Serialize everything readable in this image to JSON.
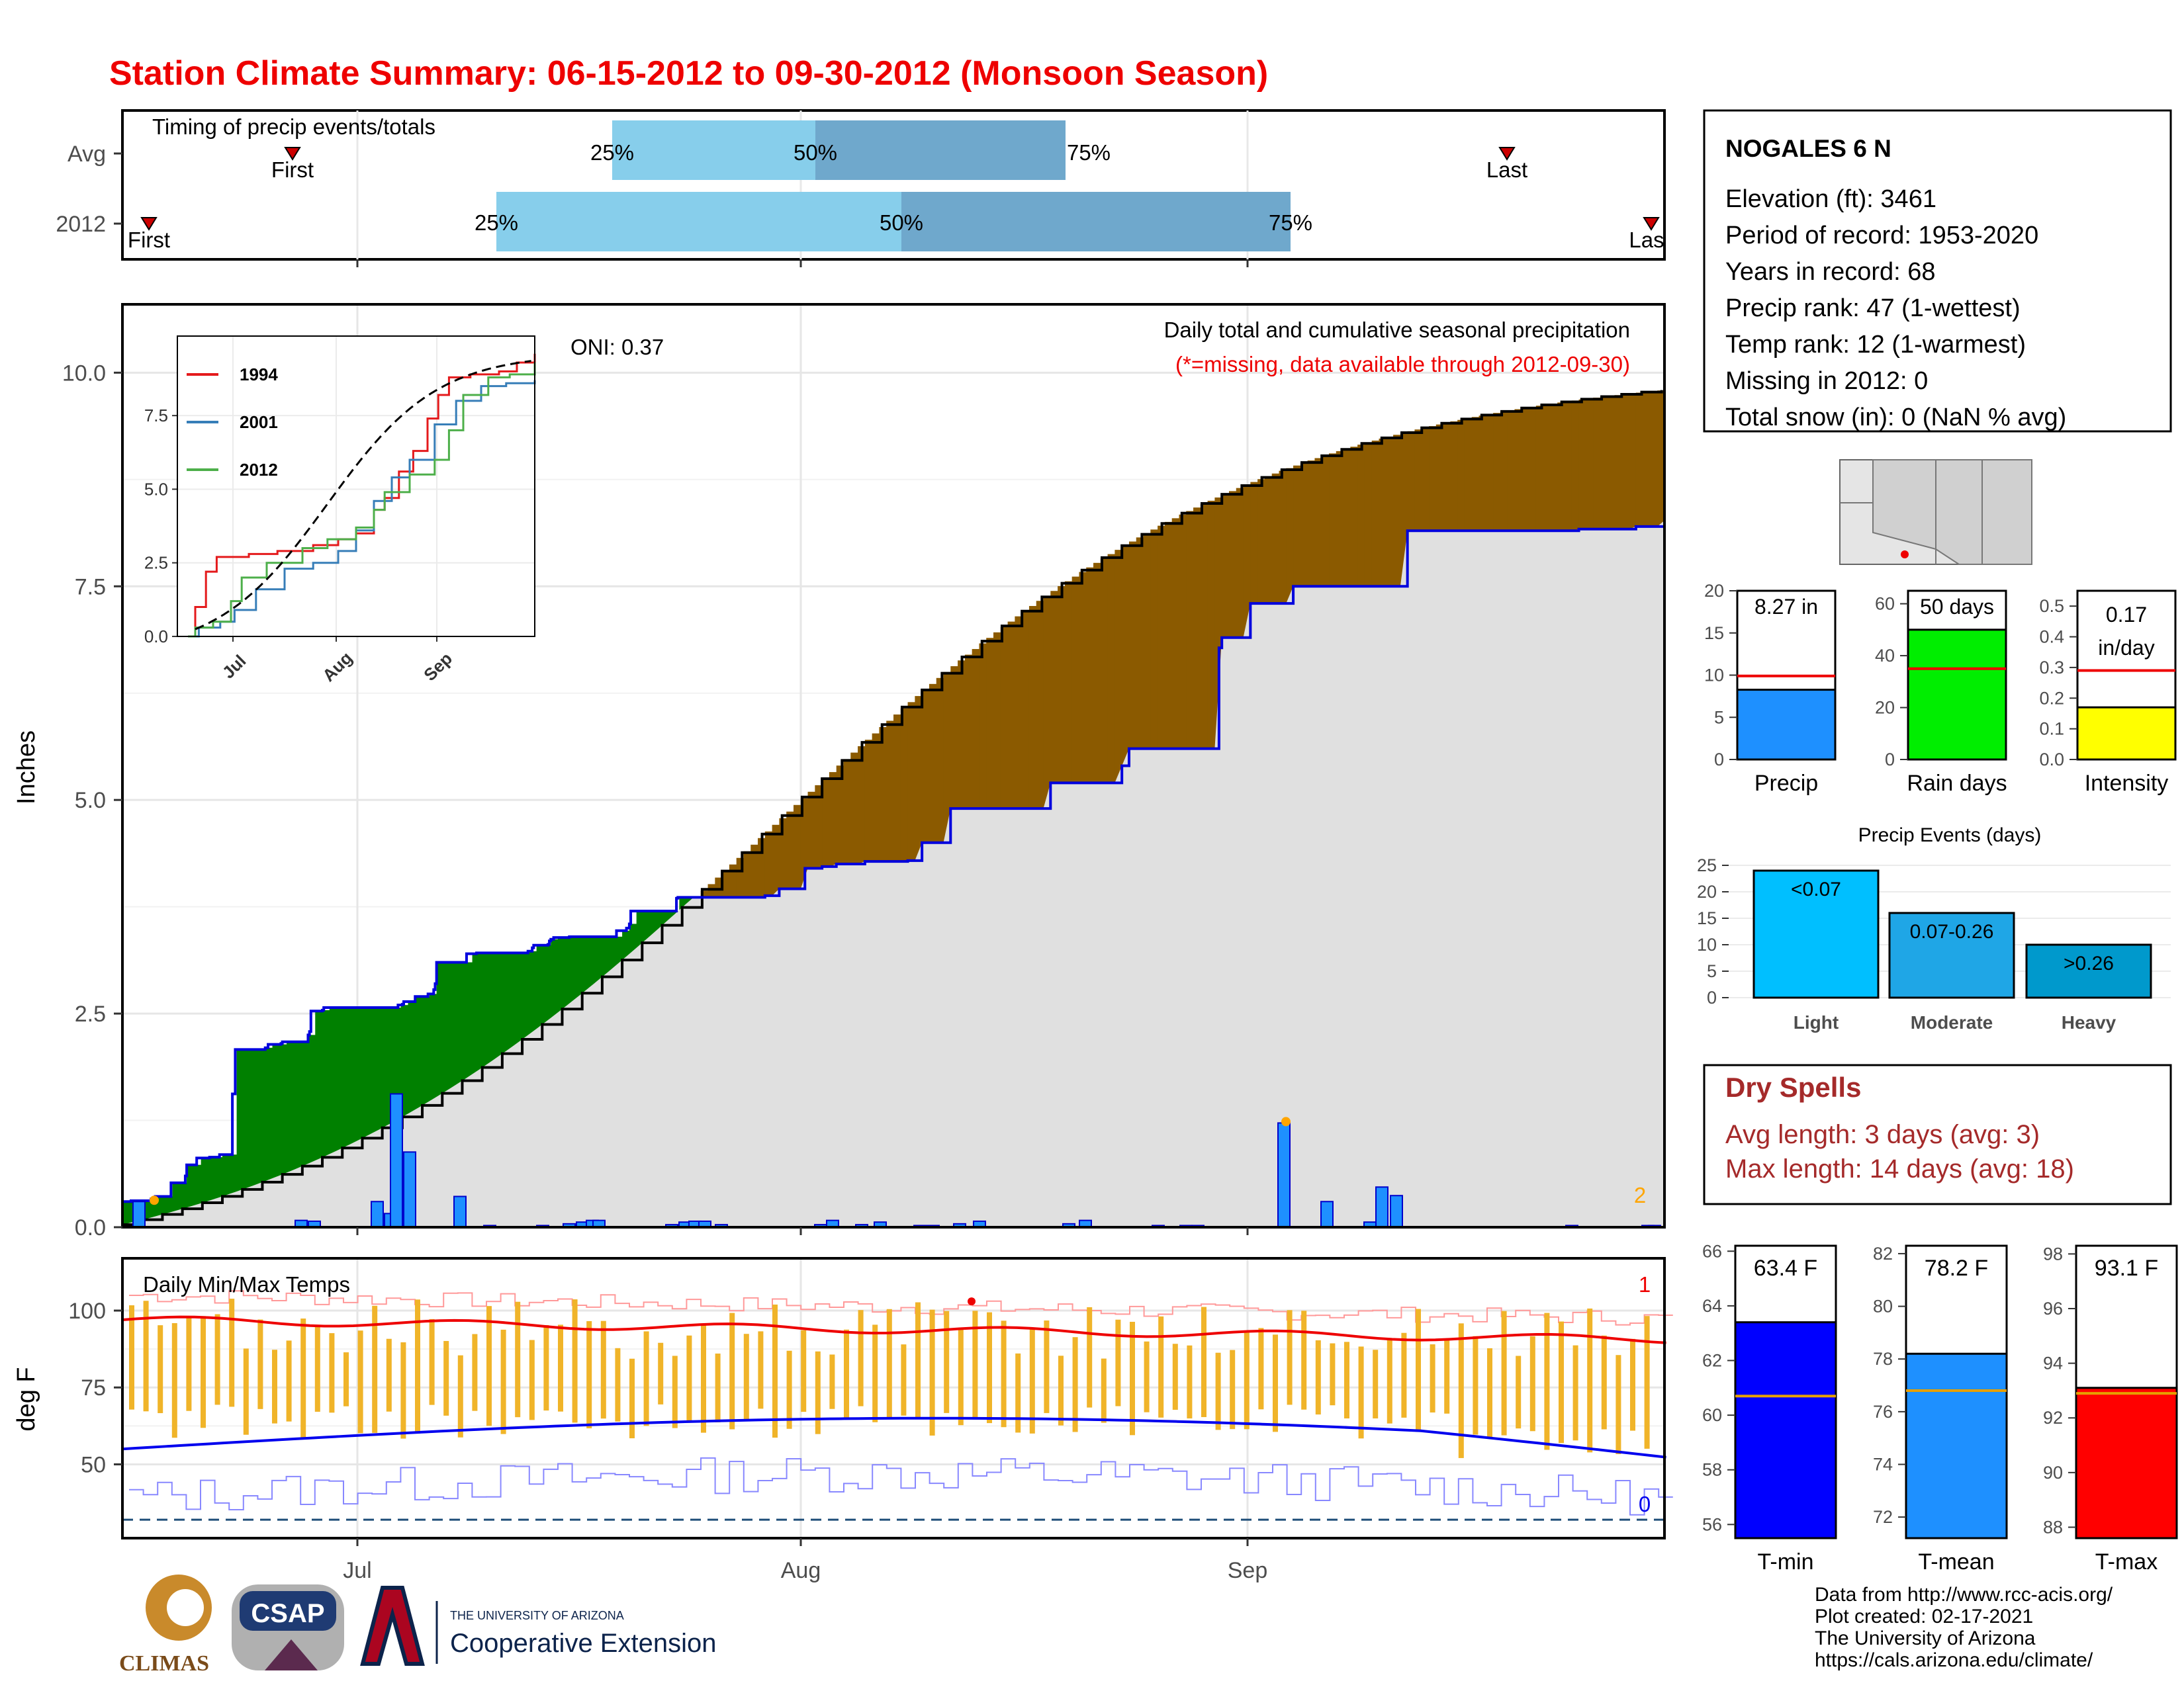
{
  "title": "Station Climate Summary: 06-15-2012 to 09-30-2012 (Monsoon Season)",
  "colors": {
    "title": "#ee0000",
    "deficit": "#8b5a00",
    "surplus": "#008000",
    "daily_bar": "#1e90ff",
    "q_light": "#87ceeb",
    "q_dark": "#6fa8cc",
    "tmax_bar": "#f0b429",
    "tmax_line": "#ee0000",
    "tmin_line": "#0000ee",
    "dry_spells": "#a52a2a"
  },
  "month_labels": [
    "Jul",
    "Aug",
    "Sep"
  ],
  "timing": {
    "panel_title": "Timing of precip events/totals",
    "rows": [
      "Avg",
      "2012"
    ],
    "first_label": "First",
    "last_label": "Last",
    "last_label_2012": "Las",
    "pct_labels": [
      "25%",
      "50%",
      "75%"
    ]
  },
  "station": {
    "name": "NOGALES 6 N",
    "lines": [
      "Elevation (ft): 3461",
      "Period of record: 1953-2020",
      "Years in record: 68",
      "Precip rank: 47 (1-wettest)",
      "Temp rank: 12 (1-warmest)",
      "Missing in 2012: 0",
      "Total snow (in): 0 (NaN % avg)"
    ]
  },
  "main_chart": {
    "ylabel": "Inches",
    "y_ticks": [
      "0.0",
      "2.5",
      "5.0",
      "7.5",
      "10.0"
    ],
    "oni": "ONI: 0.37",
    "note1": "Daily total and cumulative seasonal precipitation",
    "note2": "(*=missing, data available through 2012-09-30)",
    "corner_count": "2",
    "inset": {
      "y_ticks": [
        "0.0",
        "2.5",
        "5.0",
        "7.5"
      ],
      "x_ticks": [
        "Jul",
        "Aug",
        "Sep"
      ],
      "legend": [
        "1994",
        "2001",
        "2012"
      ],
      "legend_colors": [
        "#e41a1c",
        "#377eb8",
        "#4daf4a"
      ]
    }
  },
  "temp_chart": {
    "title": "Daily Min/Max Temps",
    "ylabel": "deg F",
    "y_ticks": [
      "50",
      "75",
      "100"
    ],
    "count_top": "1",
    "count_bottom": "0"
  },
  "precip_stats": [
    {
      "label": "Precip",
      "value_label": "8.27 in",
      "value": 8.27,
      "avg": 9.9,
      "ymax": 20,
      "ticks": [
        "0",
        "5",
        "10",
        "15",
        "20"
      ],
      "color": "#1e90ff"
    },
    {
      "label": "Rain days",
      "value_label": "50 days",
      "value": 50,
      "avg": 35,
      "ymax": 65,
      "ticks": [
        "0",
        "20",
        "40",
        "60"
      ],
      "color": "#00ee00"
    },
    {
      "label": "Intensity",
      "value_label": "0.17 in/day",
      "value": 0.17,
      "avg": 0.29,
      "ymax": 0.55,
      "ticks": [
        "0.0",
        "0.1",
        "0.2",
        "0.3",
        "0.4",
        "0.5"
      ],
      "color": "#ffff00"
    }
  ],
  "events": {
    "title": "Precip Events (days)",
    "y_ticks": [
      "0",
      "5",
      "10",
      "15",
      "20",
      "25"
    ],
    "categories": [
      "Light",
      "Moderate",
      "Heavy"
    ],
    "values": [
      24,
      16,
      10
    ],
    "labels": [
      "<0.07",
      "0.07-0.26",
      ">0.26"
    ],
    "colors": [
      "#00bfff",
      "#1fa6e6",
      "#0099cc"
    ]
  },
  "dry_spells": {
    "title": "Dry Spells",
    "avg": "Avg length: 3 days (avg: 3)",
    "max": "Max length: 14 days (avg: 18)"
  },
  "temp_stats": [
    {
      "label": "T-min",
      "value_label": "63.4 F",
      "value": 63.4,
      "avg": 60.7,
      "ymin": 55.5,
      "ymax": 66.2,
      "ticks": [
        "56",
        "58",
        "60",
        "62",
        "64",
        "66"
      ],
      "tick_vals": [
        56,
        58,
        60,
        62,
        64,
        66
      ],
      "color": "#0000ff"
    },
    {
      "label": "T-mean",
      "value_label": "78.2 F",
      "value": 78.2,
      "avg": 76.8,
      "ymin": 71.2,
      "ymax": 82.3,
      "ticks": [
        "72",
        "74",
        "76",
        "78",
        "80",
        "82"
      ],
      "tick_vals": [
        72,
        74,
        76,
        78,
        80,
        82
      ],
      "color": "#1e90ff"
    },
    {
      "label": "T-max",
      "value_label": "93.1 F",
      "value": 93.1,
      "avg": 92.9,
      "ymin": 87.6,
      "ymax": 98.3,
      "ticks": [
        "88",
        "90",
        "92",
        "94",
        "96",
        "98"
      ],
      "tick_vals": [
        88,
        90,
        92,
        94,
        96,
        98
      ],
      "color": "#ff0000"
    }
  ],
  "footer": {
    "logos": [
      "CLIMAS",
      "CSAP"
    ],
    "ua_small": "THE UNIVERSITY OF ARIZONA",
    "ua_big": "Cooperative Extension",
    "credits": [
      "Data from http://www.rcc-acis.org/",
      "Plot created: 02-17-2021",
      "The University of Arizona",
      "https://cals.arizona.edu/climate/"
    ]
  },
  "chart_data": [
    {
      "type": "area",
      "title": "Daily total and cumulative seasonal precipitation",
      "ylabel": "Inches",
      "ylim": [
        0,
        10.8
      ],
      "x_range": [
        "2012-06-15",
        "2012-09-30"
      ],
      "observed_cumulative_2012": {
        "day": [
          0,
          1,
          6,
          20,
          23,
          34,
          44,
          45,
          52,
          61,
          68,
          72,
          77,
          79,
          90,
          100,
          101,
          102,
          111,
          112,
          126,
          130,
          131,
          132,
          140,
          141,
          150,
          162,
          193,
          196,
          197,
          205,
          214,
          218,
          219,
          220,
          241,
          248,
          284,
          287,
          288,
          292,
          298,
          299,
          300,
          302,
          313,
          345,
          346,
          353,
          355,
          356,
          378,
          388,
          389,
          414,
          416,
          450,
          451,
          460,
          478,
          490,
          500,
          520,
          550,
          560,
          580,
          650,
          700,
          705,
          740,
          741,
          742,
          768,
          770,
          775,
          790,
          820,
          900,
          902,
          1000,
          1020,
          1060,
          1080
        ],
        "inches": [
          0.3,
          0.3,
          0.31,
          0.33,
          0.36,
          0.52,
          0.6,
          0.73,
          0.81,
          0.82,
          0.85,
          0.85,
          1.56,
          2.08,
          2.08,
          2.1,
          2.1,
          2.14,
          2.15,
          2.17,
          2.17,
          2.25,
          2.29,
          2.53,
          2.54,
          2.57,
          2.57,
          2.57,
          2.6,
          2.61,
          2.64,
          2.7,
          2.73,
          2.78,
          2.85,
          3.1,
          3.2,
          3.21,
          3.23,
          3.27,
          3.3,
          3.3,
          3.31,
          3.35,
          3.37,
          3.39,
          3.4,
          3.4,
          3.47,
          3.5,
          3.55,
          3.7,
          3.7,
          3.85,
          3.86,
          3.86,
          3.86,
          3.88,
          3.88,
          3.96,
          4.2,
          4.22,
          4.25,
          4.28,
          4.29,
          4.5,
          4.9,
          5.2,
          5.4,
          5.6,
          5.6,
          5.6,
          5.6,
          6.78,
          6.9,
          6.9,
          7.3,
          7.5,
          8.15,
          8.15,
          8.15,
          8.17,
          8.2,
          8.27
        ]
      },
      "notes": "day index spans 0..1080 over 2012-06-15 to 2012-09-30; average cumulative climatology rises from 0.03 to 9.8 inches; brown = below average, green = above average"
    },
    {
      "type": "bar",
      "title": "Precip Events (days)",
      "categories": [
        "Light",
        "Moderate",
        "Heavy"
      ],
      "values": [
        24,
        16,
        10
      ]
    }
  ]
}
